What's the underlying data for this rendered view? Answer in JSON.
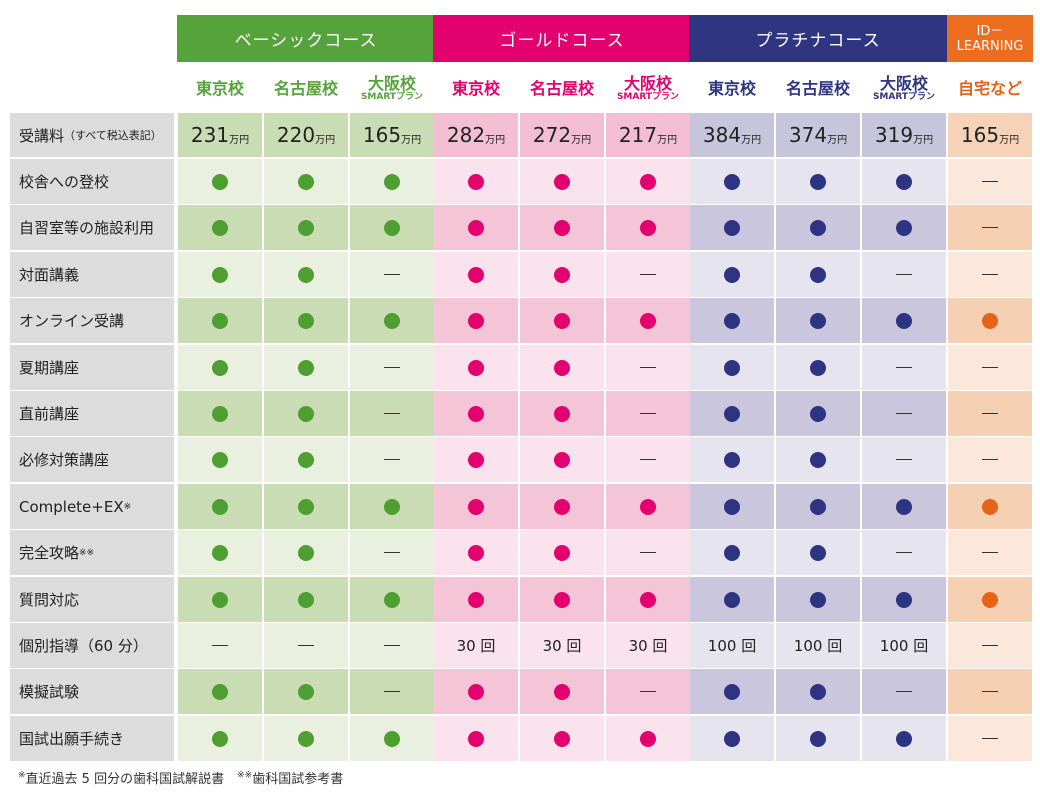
{
  "courses": [
    {
      "label": "ベーシックコース",
      "color": "#57a33b",
      "text_color": "#57a33b",
      "price_bg": "#c9dcb4",
      "cell_bg": [
        "#e9f0e0",
        "#c9dcb4"
      ],
      "dash_bg": [
        "#e9f0e0",
        "#c9dcb4"
      ],
      "dot": "#4f9e32"
    },
    {
      "label": "ゴールドコース",
      "color": "#e2016e",
      "text_color": "#e2016e",
      "price_bg": "#f4bed2",
      "cell_bg": [
        "#fae3ec",
        "#f4c4d7"
      ],
      "dash_bg": [
        "#fae3ec",
        "#f4c4d7"
      ],
      "dot": "#e2016e"
    },
    {
      "label": "プラチナコース",
      "color": "#2f3580",
      "text_color": "#2f3580",
      "price_bg": "#c7c5dc",
      "cell_bg": [
        "#e6e5ef",
        "#c9c6dd"
      ],
      "dash_bg": [
        "#e6e5ef",
        "#c9c6dd"
      ],
      "dot": "#2d3583"
    },
    {
      "label": "ID－LEARNING",
      "label_lines": [
        "ID－",
        "LEARNING"
      ],
      "color": "#ed6d1f",
      "text_color": "#e8631a",
      "price_bg": "#f6d3b8",
      "cell_bg": [
        "#fbe8da",
        "#f6d0b2"
      ],
      "dash_bg": [
        "#fbe8da",
        "#f6d0b2"
      ],
      "dot": "#e8631a"
    }
  ],
  "campuses": [
    {
      "name": "東京校",
      "sub": ""
    },
    {
      "name": "名古屋校",
      "sub": ""
    },
    {
      "name": "大阪校",
      "sub": "SMARTプラン"
    },
    {
      "name": "東京校",
      "sub": ""
    },
    {
      "name": "名古屋校",
      "sub": ""
    },
    {
      "name": "大阪校",
      "sub": "SMARTプラン"
    },
    {
      "name": "東京校",
      "sub": ""
    },
    {
      "name": "名古屋校",
      "sub": ""
    },
    {
      "name": "大阪校",
      "sub": "SMARTプラン"
    },
    {
      "name": "自宅など",
      "sub": ""
    }
  ],
  "price_row": {
    "label": "受講料",
    "label_small": "（すべて税込表記）",
    "unit": "万円",
    "values": [
      "231",
      "220",
      "165",
      "282",
      "272",
      "217",
      "384",
      "374",
      "319",
      "165"
    ]
  },
  "rows": [
    {
      "label": "校舎への登校",
      "sup": "",
      "cells": [
        "dot",
        "dot",
        "dot",
        "dot",
        "dot",
        "dot",
        "dot",
        "dot",
        "dot",
        "dash"
      ]
    },
    {
      "label": "自習室等の施設利用",
      "sup": "",
      "cells": [
        "dot",
        "dot",
        "dot",
        "dot",
        "dot",
        "dot",
        "dot",
        "dot",
        "dot",
        "dash"
      ]
    },
    {
      "label": "対面講義",
      "sup": "",
      "cells": [
        "dot",
        "dot",
        "dash",
        "dot",
        "dot",
        "dash",
        "dot",
        "dot",
        "dash",
        "dash"
      ]
    },
    {
      "label": "オンライン受講",
      "sup": "",
      "cells": [
        "dot",
        "dot",
        "dot",
        "dot",
        "dot",
        "dot",
        "dot",
        "dot",
        "dot",
        "dot"
      ]
    },
    {
      "label": "夏期講座",
      "sup": "",
      "cells": [
        "dot",
        "dot",
        "dash",
        "dot",
        "dot",
        "dash",
        "dot",
        "dot",
        "dash",
        "dash"
      ]
    },
    {
      "label": "直前講座",
      "sup": "",
      "cells": [
        "dot",
        "dot",
        "dash",
        "dot",
        "dot",
        "dash",
        "dot",
        "dot",
        "dash",
        "dash"
      ]
    },
    {
      "label": "必修対策講座",
      "sup": "",
      "cells": [
        "dot",
        "dot",
        "dash",
        "dot",
        "dot",
        "dash",
        "dot",
        "dot",
        "dash",
        "dash"
      ]
    },
    {
      "label": "Complete+EX",
      "sup": "※",
      "cells": [
        "dot",
        "dot",
        "dot",
        "dot",
        "dot",
        "dot",
        "dot",
        "dot",
        "dot",
        "dot"
      ]
    },
    {
      "label": "完全攻略",
      "sup": "※※",
      "cells": [
        "dot",
        "dot",
        "dash",
        "dot",
        "dot",
        "dash",
        "dot",
        "dot",
        "dash",
        "dash"
      ]
    },
    {
      "label": "質問対応",
      "sup": "",
      "cells": [
        "dot",
        "dot",
        "dot",
        "dot",
        "dot",
        "dot",
        "dot",
        "dot",
        "dot",
        "dot"
      ]
    },
    {
      "label": "個別指導（60 分）",
      "sup": "",
      "cells": [
        "dash",
        "dash",
        "dash",
        "30 回",
        "30 回",
        "30 回",
        "100 回",
        "100 回",
        "100 回",
        "dash"
      ]
    },
    {
      "label": "模擬試験",
      "sup": "",
      "cells": [
        "dot",
        "dot",
        "dash",
        "dot",
        "dot",
        "dash",
        "dot",
        "dot",
        "dash",
        "dash"
      ]
    },
    {
      "label": "国試出願手続き",
      "sup": "",
      "cells": [
        "dot",
        "dot",
        "dot",
        "dot",
        "dot",
        "dot",
        "dot",
        "dot",
        "dot",
        "dash"
      ]
    }
  ],
  "footnote": {
    "mark1": "※",
    "text1": "直近過去 5 回分の歯科国試解説書",
    "mark2": "※※",
    "text2": "歯科国試参考書"
  }
}
